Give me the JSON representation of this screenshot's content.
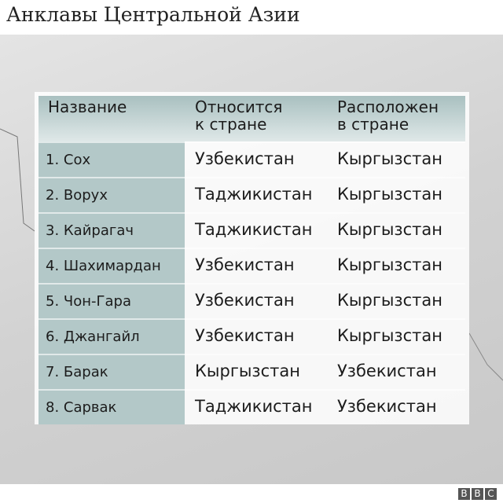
{
  "title": "Анклавы Центральной Азии",
  "table": {
    "headers": [
      "Название",
      "Относится\nк стране",
      "Расположен\nв стране"
    ],
    "rows": [
      [
        "1. Сох",
        "Узбекистан",
        "Кыргызстан"
      ],
      [
        "2. Ворух",
        "Таджикистан",
        "Кыргызстан"
      ],
      [
        "3. Кайрагач",
        "Таджикистан",
        "Кыргызстан"
      ],
      [
        "4. Шахимардан",
        "Узбекистан",
        "Кыргызстан"
      ],
      [
        "5. Чон-Гара",
        "Узбекистан",
        "Кыргызстан"
      ],
      [
        "6. Джангайл",
        "Узбекистан",
        "Кыргызстан"
      ],
      [
        "7. Барак",
        "Кыргызстан",
        "Узбекистан"
      ],
      [
        "8. Сарвак",
        "Таджикистан",
        "Узбекистан"
      ]
    ]
  },
  "logo": [
    "B",
    "B",
    "C"
  ]
}
